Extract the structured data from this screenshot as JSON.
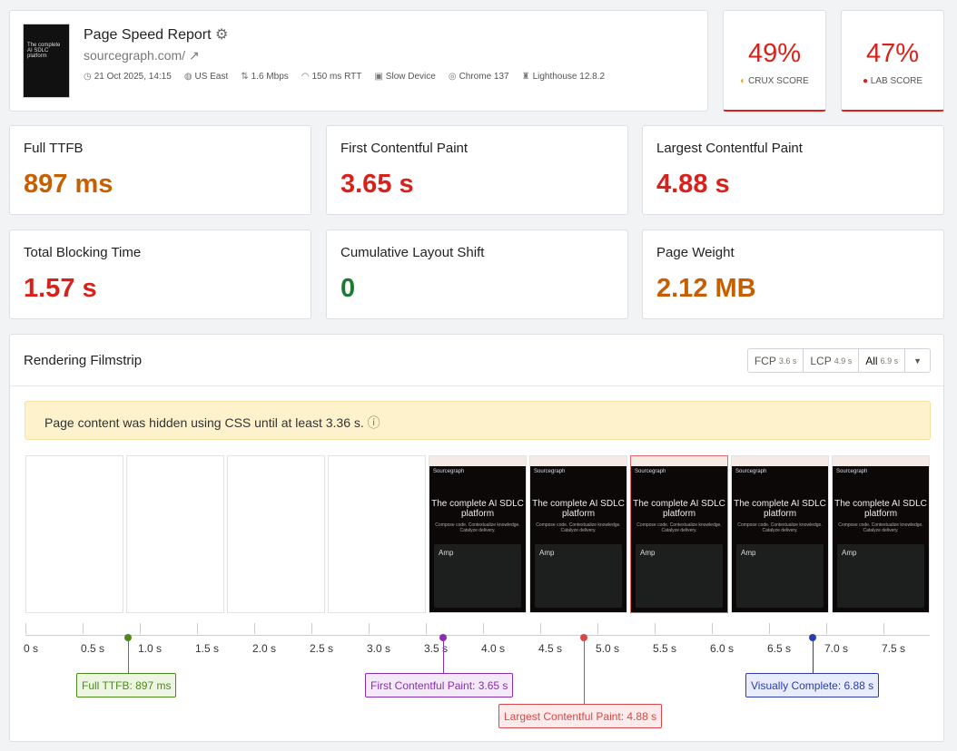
{
  "header": {
    "title": "Page Speed Report",
    "url": "sourcegraph.com/",
    "thumb_text": "The complete AI SDLC platform",
    "meta": [
      {
        "icon": "clock-icon",
        "text": "21 Oct 2025, 14:15"
      },
      {
        "icon": "globe-icon",
        "text": "US East"
      },
      {
        "icon": "bandwidth-icon",
        "text": "1.6 Mbps"
      },
      {
        "icon": "gauge-icon",
        "text": "150 ms RTT"
      },
      {
        "icon": "cpu-icon",
        "text": "Slow Device"
      },
      {
        "icon": "chrome-icon",
        "text": "Chrome 137"
      },
      {
        "icon": "lighthouse-icon",
        "text": "Lighthouse 12.8.2"
      }
    ]
  },
  "scores": [
    {
      "value": "49%",
      "label": "CrUX Score"
    },
    {
      "value": "47%",
      "label": "Lab Score"
    }
  ],
  "metrics": [
    {
      "label": "Full TTFB",
      "value": "897 ms",
      "color": "#c75f00"
    },
    {
      "label": "First Contentful Paint",
      "value": "3.65 s",
      "color": "#d9211b"
    },
    {
      "label": "Largest Contentful Paint",
      "value": "4.88 s",
      "color": "#d9211b"
    },
    {
      "label": "Total Blocking Time",
      "value": "1.57 s",
      "color": "#d9211b"
    },
    {
      "label": "Cumulative Layout Shift",
      "value": "0",
      "color": "#1d7a33"
    },
    {
      "label": "Page Weight",
      "value": "2.12 MB",
      "color": "#c75f00"
    }
  ],
  "filmstrip": {
    "title": "Rendering Filmstrip",
    "tabs": [
      {
        "label": "FCP",
        "time": "3.6 s"
      },
      {
        "label": "LCP",
        "time": "4.9 s"
      },
      {
        "label": "All",
        "time": "6.9 s"
      }
    ],
    "banner": "Page content was hidden using CSS until at least 3.36 s.",
    "frame_content": {
      "logo": "Sourcegraph",
      "heading": "The complete AI SDLC platform",
      "sub": "Compose code. Contextualize knowledge. Catalyze delivery.",
      "card": "Amp"
    },
    "ticks": [
      "0 s",
      "0.5 s",
      "1.0 s",
      "1.5 s",
      "2.0 s",
      "2.5 s",
      "3.0 s",
      "3.5 s",
      "4.0 s",
      "4.5 s",
      "5.0 s",
      "5.5 s",
      "6.0 s",
      "6.5 s",
      "7.0 s",
      "7.5 s"
    ],
    "markers": [
      {
        "label": "Full TTFB: 897 ms",
        "time": 0.897,
        "color": "#4b8a1c",
        "bg": "#eef6e3"
      },
      {
        "label": "First Contentful Paint: 3.65 s",
        "time": 3.65,
        "color": "#8a2fb0",
        "bg": "#f4e9f9"
      },
      {
        "label": "Largest Contentful Paint: 4.88 s",
        "time": 4.88,
        "color": "#d94848",
        "bg": "#fdeaea"
      },
      {
        "label": "Visually Complete: 6.88 s",
        "time": 6.88,
        "color": "#2b3ea8",
        "bg": "#e9ecfa"
      }
    ]
  }
}
